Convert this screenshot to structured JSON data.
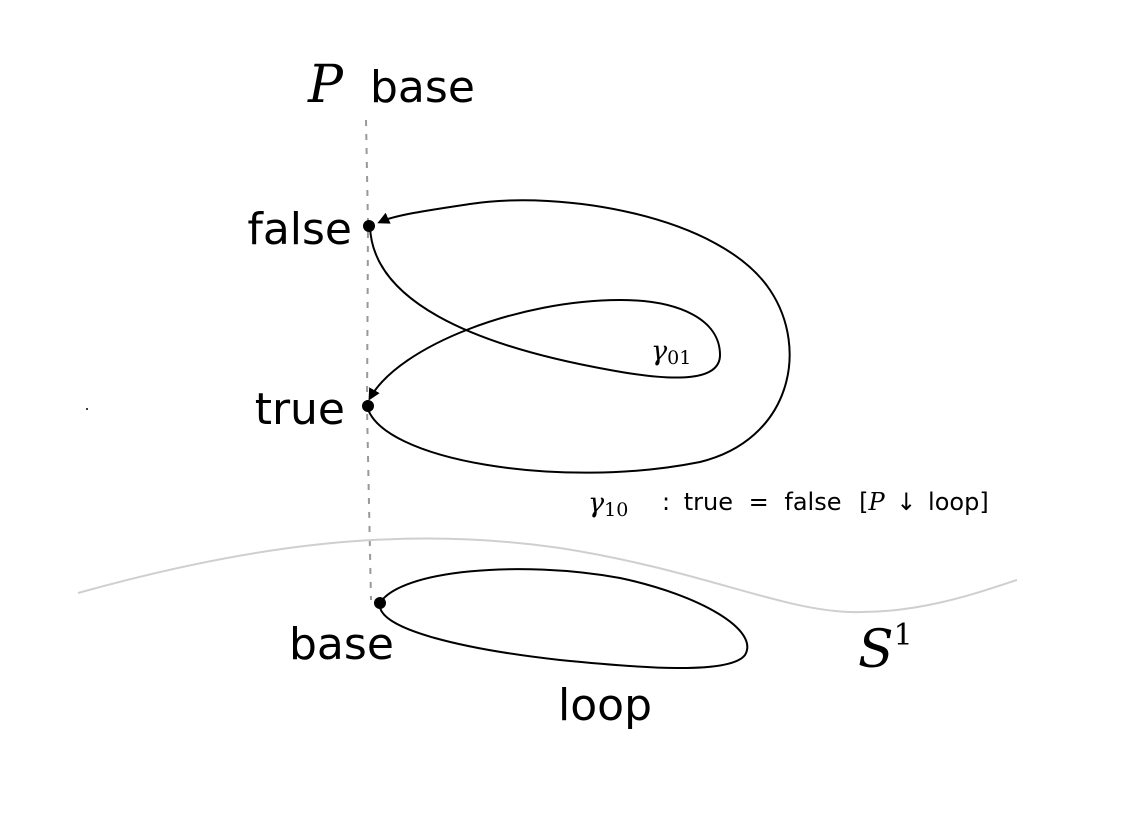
{
  "fiber_title": {
    "symbol": "P",
    "word": "base"
  },
  "points": {
    "false": "false",
    "true": "true",
    "base": "base"
  },
  "paths": {
    "gamma01": {
      "symbol": "γ",
      "index": "01"
    },
    "gamma10": {
      "symbol": "γ",
      "index": "10",
      "colon": ":",
      "lhs": "true",
      "eq": "=",
      "rhs": "false",
      "open": "[",
      "fam": "P",
      "arrow": "↓",
      "over": "loop",
      "close": "]"
    },
    "loop": "loop"
  },
  "space": {
    "symbol": "S",
    "exp": "1"
  }
}
